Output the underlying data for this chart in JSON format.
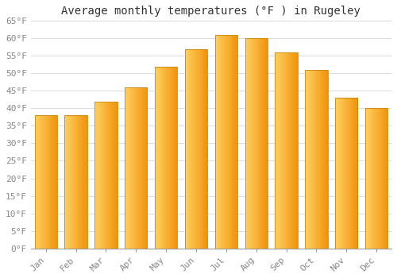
{
  "months": [
    "Jan",
    "Feb",
    "Mar",
    "Apr",
    "May",
    "Jun",
    "Jul",
    "Aug",
    "Sep",
    "Oct",
    "Nov",
    "Dec"
  ],
  "values": [
    38,
    38,
    42,
    46,
    52,
    57,
    61,
    60,
    56,
    51,
    43,
    40
  ],
  "bar_color_left": "#FFD060",
  "bar_color_right": "#F0920A",
  "bar_edge_color": "#C8880A",
  "title": "Average monthly temperatures (°F ) in Rugeley",
  "ylim": [
    0,
    65
  ],
  "yticks": [
    0,
    5,
    10,
    15,
    20,
    25,
    30,
    35,
    40,
    45,
    50,
    55,
    60,
    65
  ],
  "ytick_labels": [
    "0°F",
    "5°F",
    "10°F",
    "15°F",
    "20°F",
    "25°F",
    "30°F",
    "35°F",
    "40°F",
    "45°F",
    "50°F",
    "55°F",
    "60°F",
    "65°F"
  ],
  "background_color": "#ffffff",
  "grid_color": "#dddddd",
  "title_fontsize": 10,
  "tick_fontsize": 8,
  "font_family": "monospace"
}
